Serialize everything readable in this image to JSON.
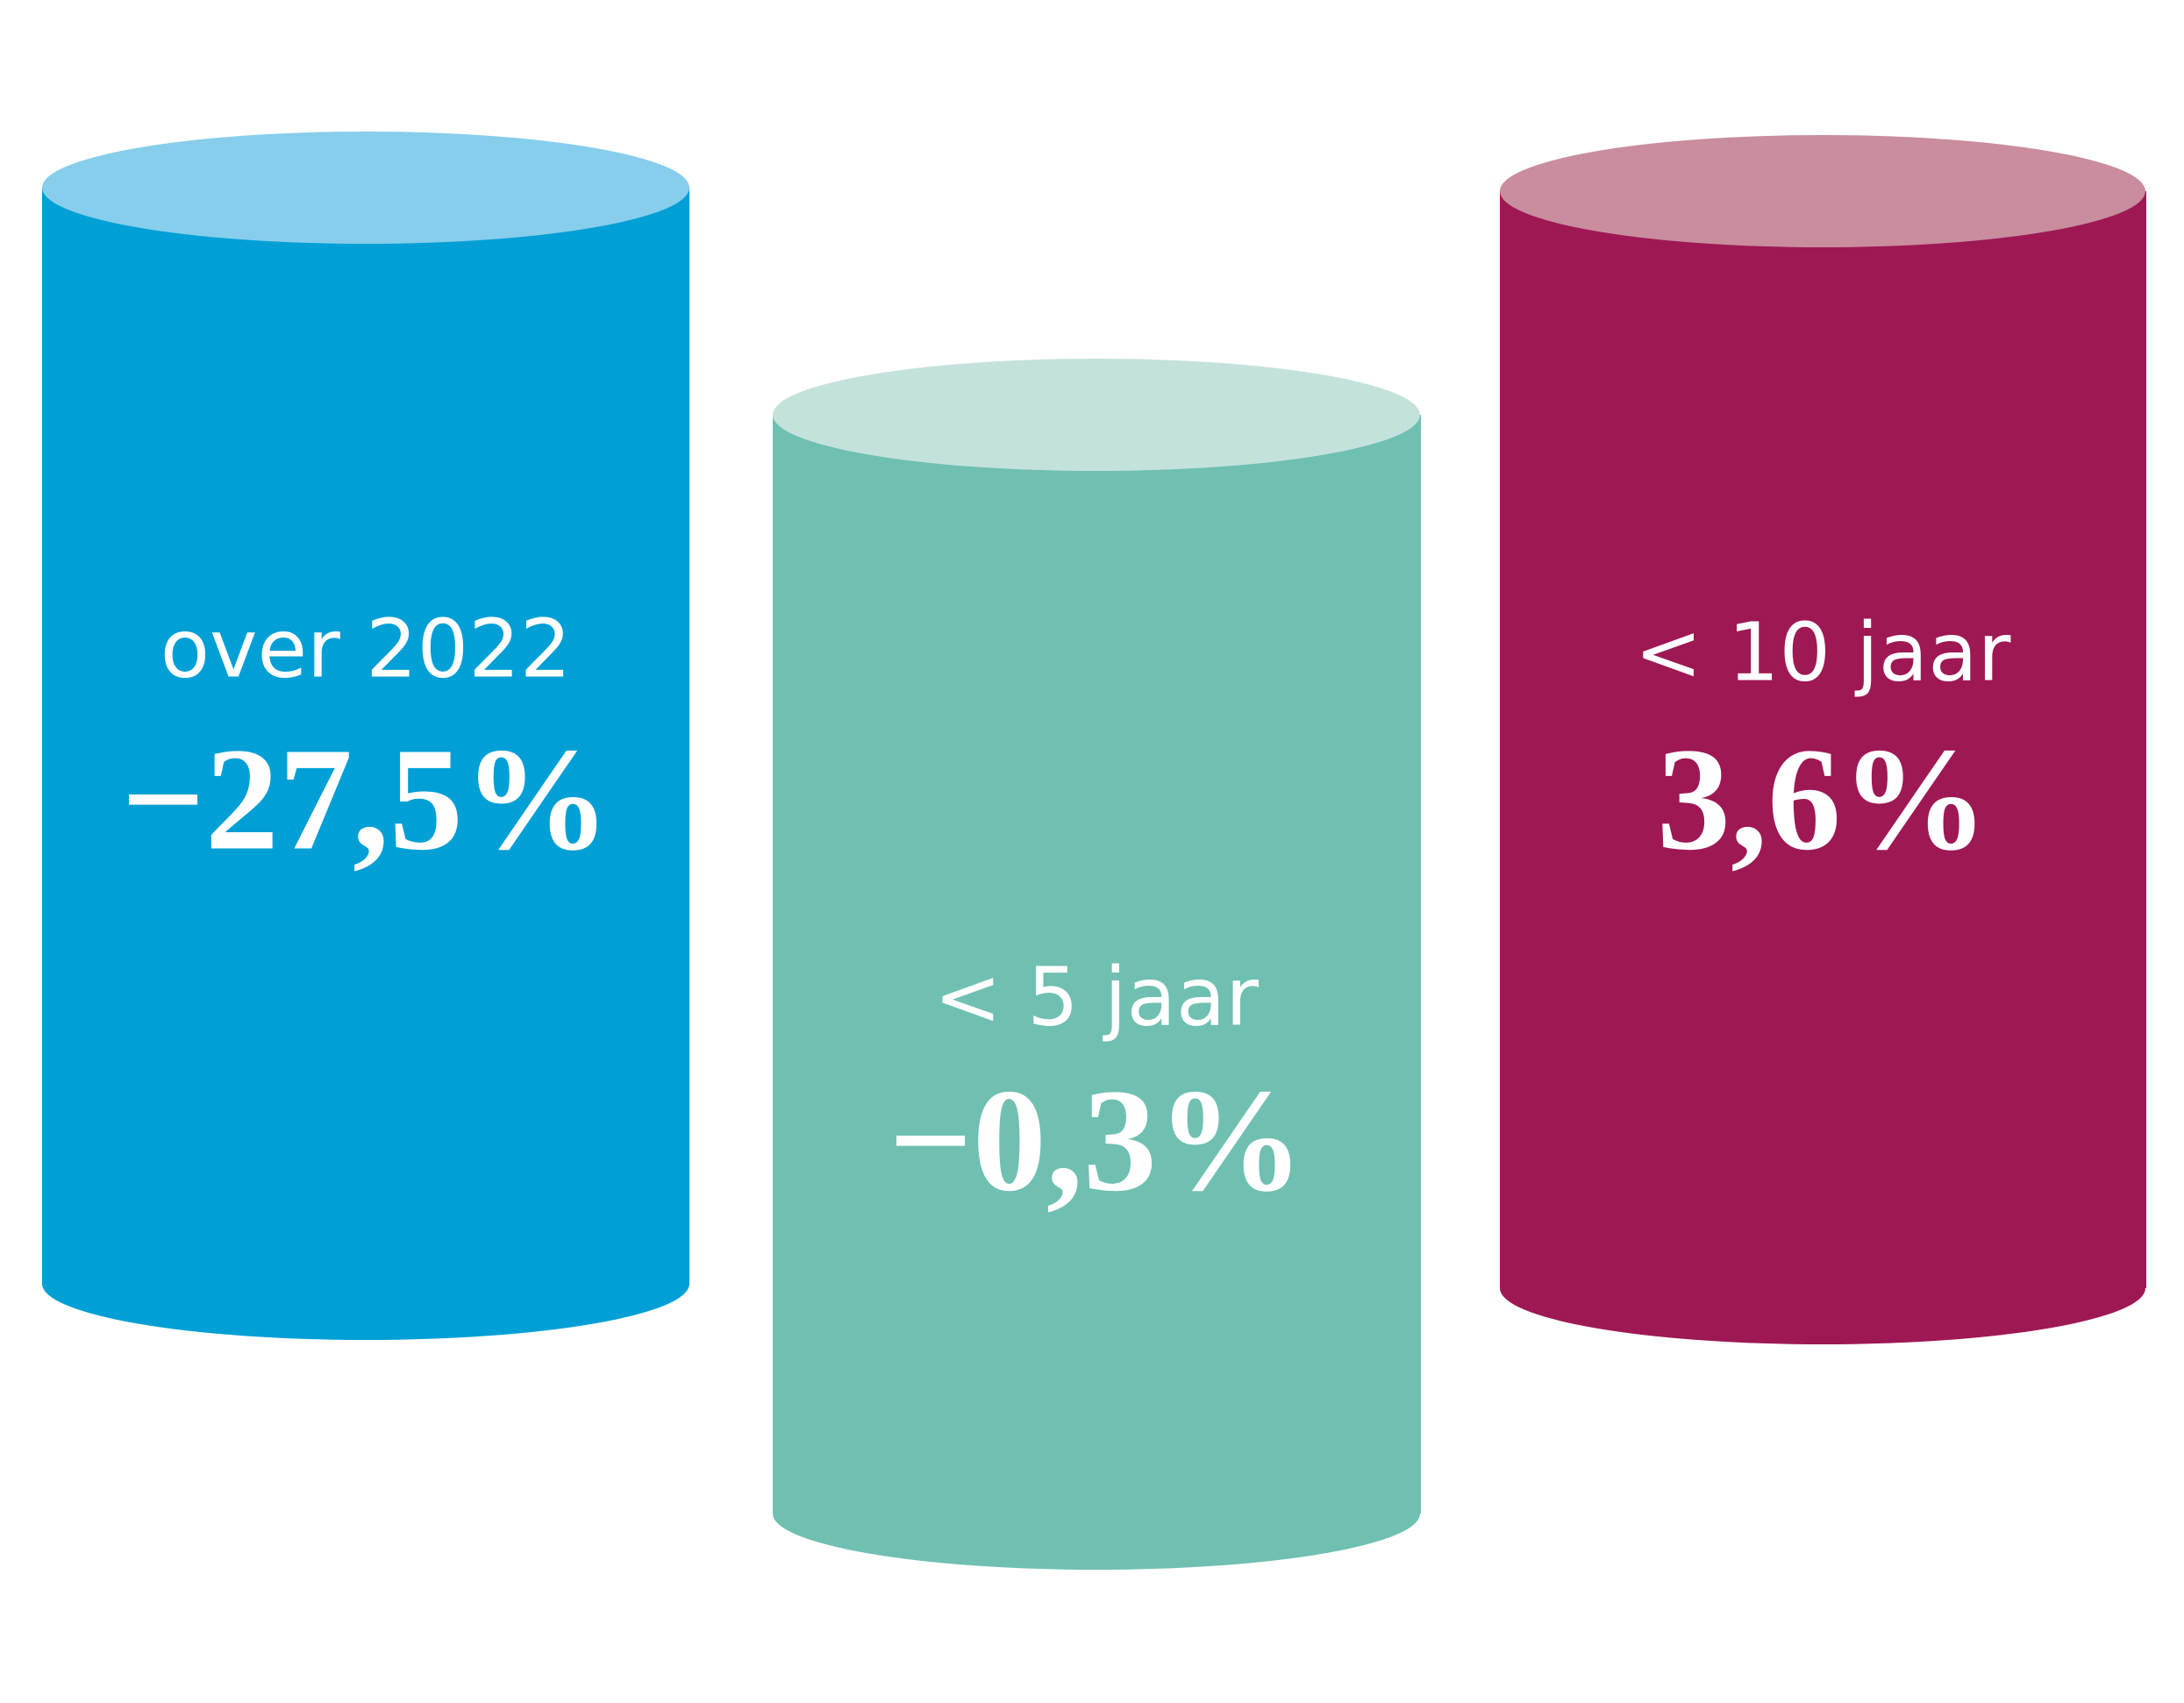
{
  "items": [
    {
      "label": "over 2022",
      "value": "−27,5%"
    },
    {
      "label": "< 5 jaar",
      "value": "−0,3%"
    },
    {
      "label": "< 10 jaar",
      "value": "3,6%"
    }
  ]
}
